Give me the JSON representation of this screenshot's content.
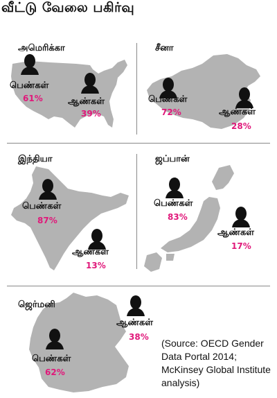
{
  "title": "வீட்டு வேலை பகிர்வு",
  "colors": {
    "map": "#b3b3b3",
    "women_pct": "#e0187a",
    "divider": "#888888"
  },
  "icons": {
    "person": "person-silhouette-icon"
  },
  "panels": [
    {
      "country": "அமெரிக்கா",
      "women_label": "பெண்கள்",
      "women_pct": "61%",
      "men_label": "ஆண்கள்",
      "men_pct": "39%"
    },
    {
      "country": "சீனா",
      "women_label": "பெண்கள்",
      "women_pct": "72%",
      "men_label": "ஆண்கள்",
      "men_pct": "28%"
    },
    {
      "country": "இந்தியா",
      "women_label": "பெண்கள்",
      "women_pct": "87%",
      "men_label": "ஆண்கள்",
      "men_pct": "13%"
    },
    {
      "country": "ஜப்பான்",
      "women_label": "பெண்கள்",
      "women_pct": "83%",
      "men_label": "ஆண்கள்",
      "men_pct": "17%"
    },
    {
      "country": "ஜெர்மனி",
      "women_label": "பெண்கள்",
      "women_pct": "62%",
      "men_label": "ஆண்கள்",
      "men_pct": "38%"
    }
  ],
  "source": "(Source: OECD Gender Data Portal 2014; McKinsey Global Institute analysis)"
}
